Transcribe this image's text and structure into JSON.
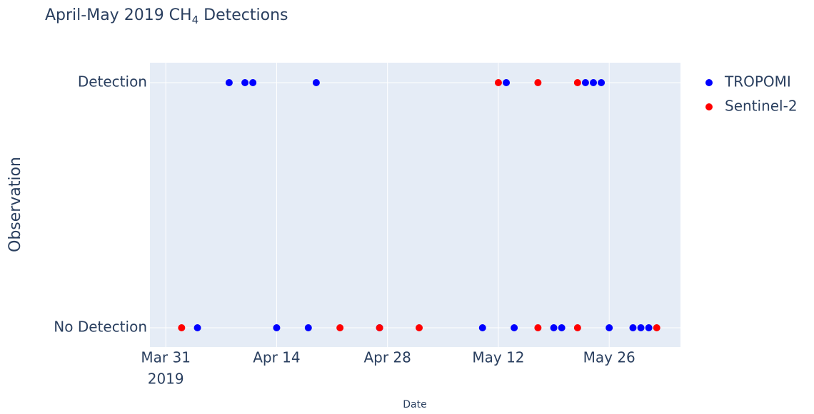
{
  "chart_data": {
    "type": "scatter",
    "title": [
      "April-May 2019 CH",
      "4",
      " Detections"
    ],
    "x_label": "Date",
    "y_label": "Observation",
    "categories": [
      "No Detection",
      "Detection"
    ],
    "xlim": [
      "2019-03-29",
      "2019-06-04"
    ],
    "xticks": [
      {
        "value": "2019-03-31",
        "label": [
          "Mar 31",
          "2019"
        ]
      },
      {
        "value": "2019-04-14",
        "label": "Apr 14"
      },
      {
        "value": "2019-04-28",
        "label": "Apr 28"
      },
      {
        "value": "2019-05-12",
        "label": "May 12"
      },
      {
        "value": "2019-05-26",
        "label": "May 26"
      }
    ],
    "grid": true,
    "legend": "right",
    "series": [
      {
        "name": "TROPOMI",
        "color": "#0000ff",
        "x": [
          "2019-04-08",
          "2019-04-10",
          "2019-04-11",
          "2019-04-19",
          "2019-05-13",
          "2019-05-23",
          "2019-05-24",
          "2019-05-25",
          "2019-04-04",
          "2019-04-14",
          "2019-04-18",
          "2019-04-27",
          "2019-05-10",
          "2019-05-14",
          "2019-05-19",
          "2019-05-20",
          "2019-05-26",
          "2019-05-29",
          "2019-05-30",
          "2019-05-31"
        ],
        "values": [
          "Detection",
          "Detection",
          "Detection",
          "Detection",
          "Detection",
          "Detection",
          "Detection",
          "Detection",
          "No Detection",
          "No Detection",
          "No Detection",
          "No Detection",
          "No Detection",
          "No Detection",
          "No Detection",
          "No Detection",
          "No Detection",
          "No Detection",
          "No Detection",
          "No Detection"
        ]
      },
      {
        "name": "Sentinel-2",
        "color": "#ff0000",
        "x": [
          "2019-05-12",
          "2019-05-17",
          "2019-05-22",
          "2019-04-02",
          "2019-04-22",
          "2019-04-27",
          "2019-05-02",
          "2019-05-17",
          "2019-05-22",
          "2019-06-01"
        ],
        "values": [
          "Detection",
          "Detection",
          "Detection",
          "No Detection",
          "No Detection",
          "No Detection",
          "No Detection",
          "No Detection",
          "No Detection",
          "No Detection"
        ]
      }
    ]
  }
}
